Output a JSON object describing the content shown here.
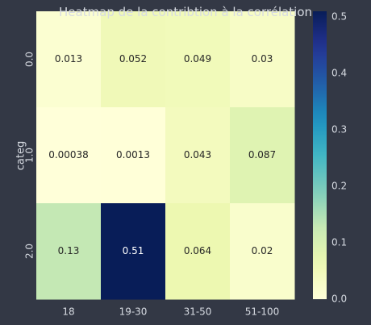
{
  "page": {
    "background": "#333845"
  },
  "chart_data": {
    "type": "heatmap",
    "title": "Heatmap de la contribtion à la corrélation",
    "xlabel": "",
    "ylabel": "categ",
    "x_categories": [
      "18",
      "19-30",
      "31-50",
      "51-100"
    ],
    "y_categories": [
      "0.0",
      "1.0",
      "2.0"
    ],
    "values": [
      [
        0.013,
        0.052,
        0.049,
        0.03
      ],
      [
        0.00038,
        0.0013,
        0.043,
        0.087
      ],
      [
        0.13,
        0.51,
        0.064,
        0.02
      ]
    ],
    "cell_labels": [
      [
        "0.013",
        "0.052",
        "0.049",
        "0.03"
      ],
      [
        "0.00038",
        "0.0013",
        "0.043",
        "0.087"
      ],
      [
        "0.13",
        "0.51",
        "0.064",
        "0.02"
      ]
    ],
    "colormap": "YlGnBu",
    "colorbar": {
      "min": 0.0,
      "max": 0.51,
      "ticks": [
        "0.0",
        "0.1",
        "0.2",
        "0.3",
        "0.4",
        "0.5"
      ]
    },
    "grid": false
  }
}
